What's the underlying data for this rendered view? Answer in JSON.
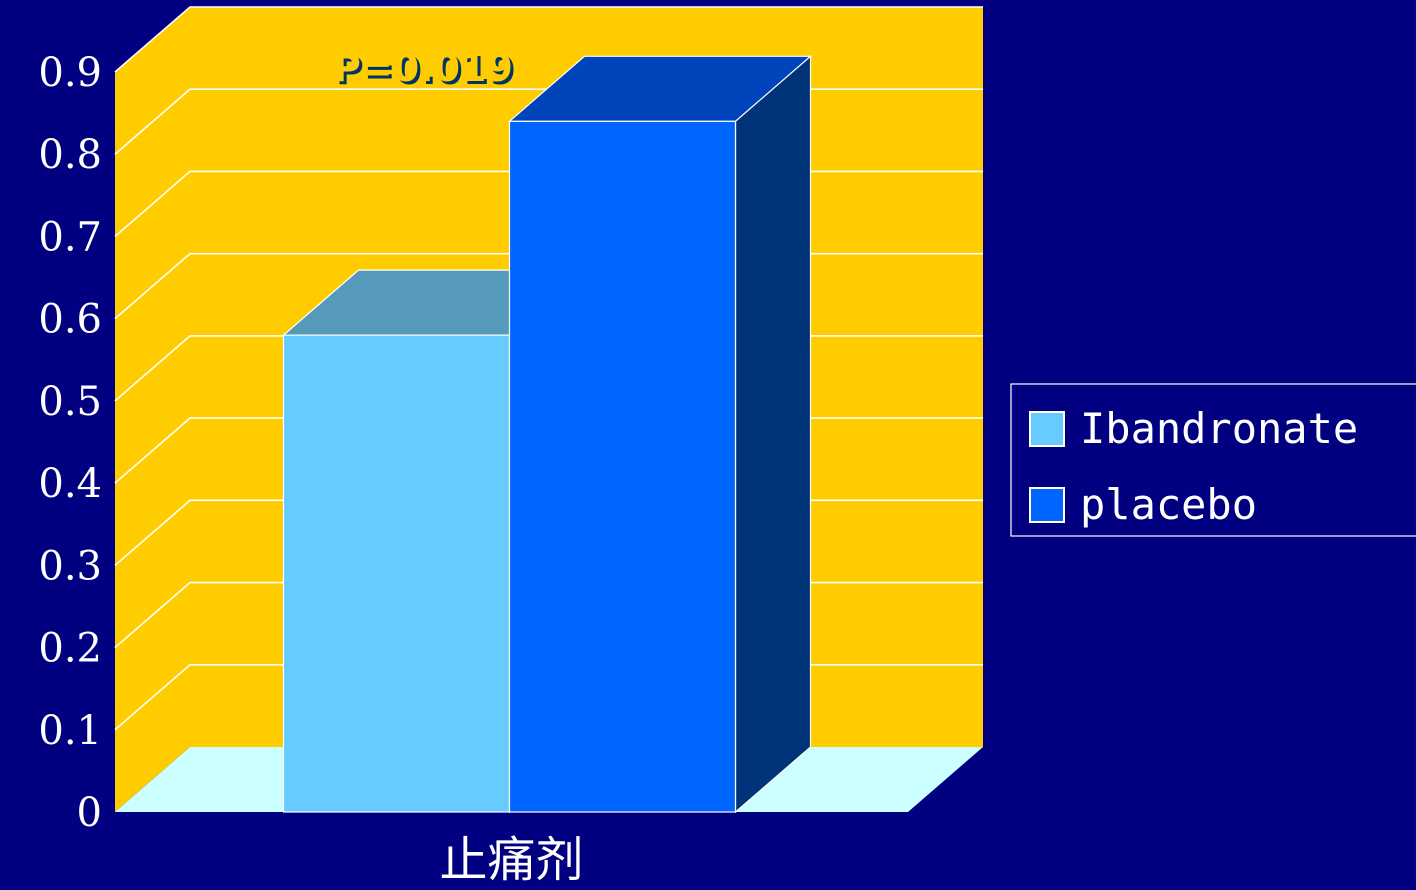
{
  "chart_data": {
    "type": "bar",
    "style": "3d-column",
    "categories": [
      "止痛剂"
    ],
    "series": [
      {
        "name": "Ibandronate",
        "values": [
          0.58
        ],
        "color": "#66CCFF",
        "top_color": "#5599BB",
        "side_color": "#4488AA"
      },
      {
        "name": "placebo",
        "values": [
          0.84
        ],
        "color": "#0066FF",
        "top_color": "#0044BB",
        "side_color": "#003377"
      }
    ],
    "yticks": [
      "0",
      "0.1",
      "0.2",
      "0.3",
      "0.4",
      "0.5",
      "0.6",
      "0.7",
      "0.8",
      "0.9"
    ],
    "ylim": [
      0,
      0.9
    ],
    "grid": true,
    "legend_position": "right",
    "annotation": "P=0.019",
    "colors": {
      "background": "#000080",
      "wall": "#FFCC00",
      "floor": "#CCFFFF",
      "gridline": "#FFFFFF",
      "text": "#FFFFFF",
      "annotation": "#FFCC00"
    }
  }
}
